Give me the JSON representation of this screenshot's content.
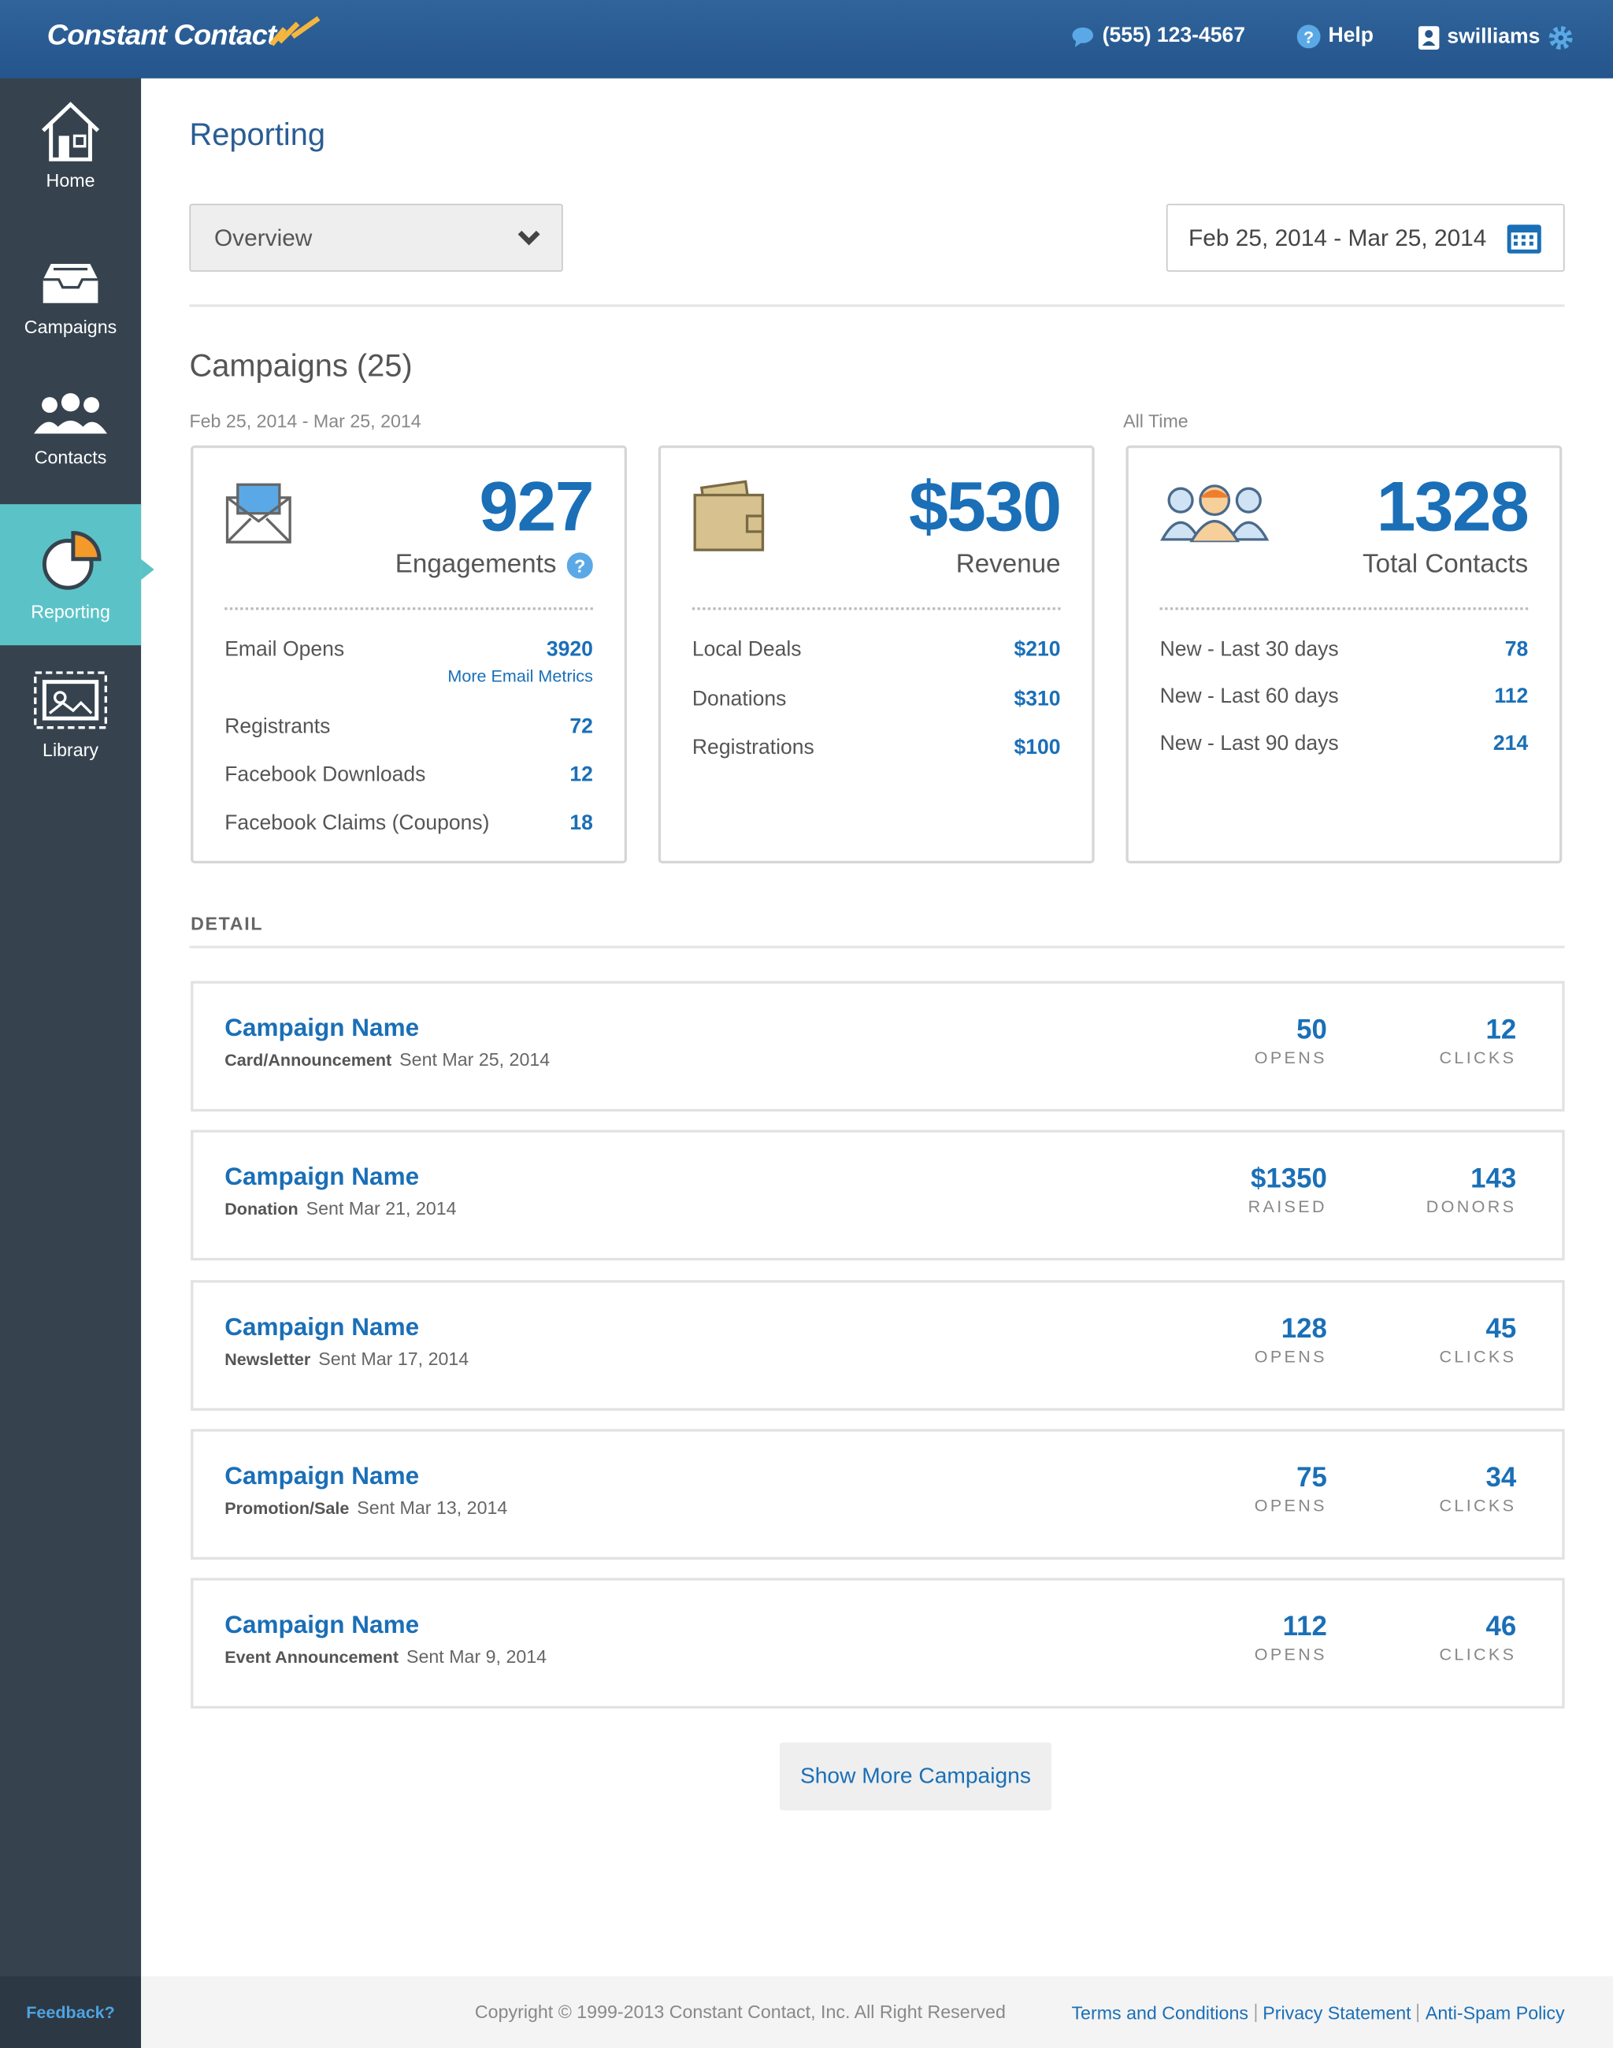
{
  "header": {
    "logo": "Constant Contact",
    "phone": "(555) 123-4567",
    "help": "Help",
    "user": "swilliams"
  },
  "sidebar": {
    "items": [
      "Home",
      "Campaigns",
      "Contacts",
      "Reporting",
      "Library"
    ],
    "feedback": "Feedback?"
  },
  "page": {
    "title": "Reporting",
    "view_select": "Overview",
    "date_range": "Feb 25, 2014 - Mar 25, 2014"
  },
  "summary": {
    "title": "Campaigns (25)",
    "period": "Feb 25, 2014 - Mar 25, 2014",
    "all_time": "All Time",
    "cards": [
      {
        "value": "927",
        "label": "Engagements",
        "rows": [
          {
            "label": "Email Opens",
            "value": "3920",
            "link": "More Email Metrics"
          },
          {
            "label": "Registrants",
            "value": "72"
          },
          {
            "label": "Facebook Downloads",
            "value": "12"
          },
          {
            "label": "Facebook Claims (Coupons)",
            "value": "18"
          }
        ]
      },
      {
        "value": "$530",
        "label": "Revenue",
        "rows": [
          {
            "label": "Local Deals",
            "value": "$210"
          },
          {
            "label": "Donations",
            "value": "$310"
          },
          {
            "label": "Registrations",
            "value": "$100"
          }
        ]
      },
      {
        "value": "1328",
        "label": "Total Contacts",
        "rows": [
          {
            "label": "New - Last 30 days",
            "value": "78"
          },
          {
            "label": "New - Last 60 days",
            "value": "112"
          },
          {
            "label": "New - Last 90 days",
            "value": "214"
          }
        ]
      }
    ]
  },
  "detail": {
    "title": "DETAIL",
    "campaigns": [
      {
        "name": "Campaign Name",
        "type": "Card/Announcement",
        "sent": "Sent Mar 25, 2014",
        "stats": [
          {
            "value": "50",
            "label": "OPENS"
          },
          {
            "value": "12",
            "label": "CLICKS"
          }
        ]
      },
      {
        "name": "Campaign Name",
        "type": "Donation",
        "sent": "Sent Mar 21, 2014",
        "stats": [
          {
            "value": "$1350",
            "label": "RAISED"
          },
          {
            "value": "143",
            "label": "DONORS"
          }
        ]
      },
      {
        "name": "Campaign Name",
        "type": "Newsletter",
        "sent": "Sent Mar 17, 2014",
        "stats": [
          {
            "value": "128",
            "label": "OPENS"
          },
          {
            "value": "45",
            "label": "CLICKS"
          }
        ]
      },
      {
        "name": "Campaign Name",
        "type": "Promotion/Sale",
        "sent": "Sent Mar 13, 2014",
        "stats": [
          {
            "value": "75",
            "label": "OPENS"
          },
          {
            "value": "34",
            "label": "CLICKS"
          }
        ]
      },
      {
        "name": "Campaign Name",
        "type": "Event Announcement",
        "sent": "Sent Mar 9, 2014",
        "stats": [
          {
            "value": "112",
            "label": "OPENS"
          },
          {
            "value": "46",
            "label": "CLICKS"
          }
        ]
      }
    ],
    "show_more": "Show More Campaigns"
  },
  "footer": {
    "copyright": "Copyright © 1999-2013 Constant Contact, Inc. All Right Reserved",
    "links": [
      "Terms and Conditions",
      "Privacy Statement",
      "Anti-Spam Policy"
    ]
  }
}
